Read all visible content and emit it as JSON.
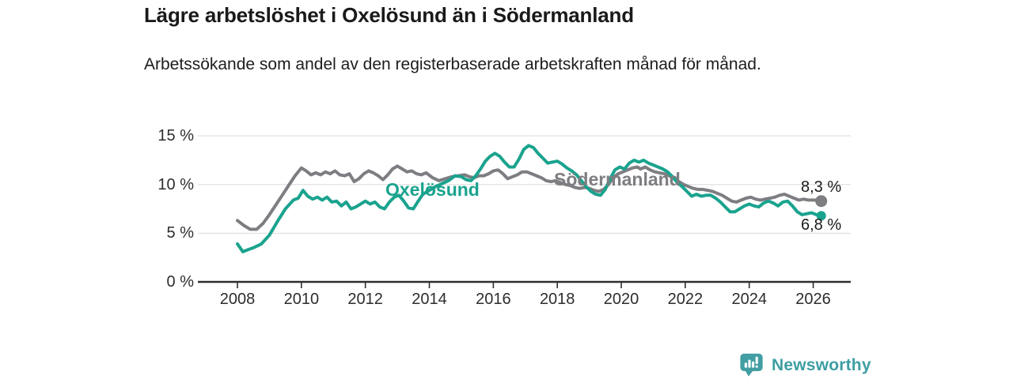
{
  "chart_data": {
    "type": "line",
    "title": "Lägre arbetslöshet i Oxelösund än i Södermanland",
    "subtitle": "Arbetssökande som andel av den registerbaserade arbetskraften månad för månad.",
    "unit": "%",
    "grid": true,
    "legend_position": "inline-labels",
    "x_axis": {
      "tick_years": [
        2008,
        2010,
        2012,
        2014,
        2016,
        2018,
        2020,
        2022,
        2024,
        2026
      ],
      "tick_labels": [
        "2008",
        "2010",
        "2012",
        "2014",
        "2016",
        "2018",
        "2020",
        "2022",
        "2024",
        "2026"
      ],
      "range": [
        2008,
        2026.25
      ]
    },
    "y_axis": {
      "tick_values": [
        15,
        10,
        5,
        0
      ],
      "tick_labels": [
        "15 %",
        "10 %",
        "5 %",
        "0 %"
      ],
      "range": [
        0,
        15
      ]
    },
    "series": [
      {
        "name": "Oxelösund",
        "color": "#1aa38e",
        "end_label": "6,8 %",
        "end_value": 6.8,
        "points": [
          [
            2008.0,
            3.9
          ],
          [
            2008.17,
            3.1
          ],
          [
            2008.33,
            3.3
          ],
          [
            2008.5,
            3.5
          ],
          [
            2008.75,
            3.9
          ],
          [
            2009.0,
            4.8
          ],
          [
            2009.25,
            6.2
          ],
          [
            2009.5,
            7.5
          ],
          [
            2009.75,
            8.4
          ],
          [
            2009.9,
            8.6
          ],
          [
            2010.05,
            9.4
          ],
          [
            2010.2,
            8.8
          ],
          [
            2010.35,
            8.5
          ],
          [
            2010.5,
            8.7
          ],
          [
            2010.65,
            8.4
          ],
          [
            2010.8,
            8.7
          ],
          [
            2010.95,
            8.2
          ],
          [
            2011.1,
            8.3
          ],
          [
            2011.25,
            7.8
          ],
          [
            2011.4,
            8.2
          ],
          [
            2011.55,
            7.5
          ],
          [
            2011.7,
            7.7
          ],
          [
            2011.85,
            8.0
          ],
          [
            2012.0,
            8.3
          ],
          [
            2012.15,
            8.0
          ],
          [
            2012.3,
            8.2
          ],
          [
            2012.45,
            7.7
          ],
          [
            2012.6,
            7.5
          ],
          [
            2012.75,
            8.2
          ],
          [
            2012.9,
            8.7
          ],
          [
            2013.05,
            8.9
          ],
          [
            2013.2,
            8.3
          ],
          [
            2013.35,
            7.6
          ],
          [
            2013.5,
            7.5
          ],
          [
            2013.65,
            8.3
          ],
          [
            2013.8,
            9.0
          ],
          [
            2014.0,
            9.4
          ],
          [
            2014.2,
            9.8
          ],
          [
            2014.4,
            10.1
          ],
          [
            2014.6,
            10.4
          ],
          [
            2014.8,
            10.9
          ],
          [
            2015.0,
            10.8
          ],
          [
            2015.15,
            10.5
          ],
          [
            2015.3,
            10.4
          ],
          [
            2015.45,
            10.9
          ],
          [
            2015.6,
            11.6
          ],
          [
            2015.75,
            12.4
          ],
          [
            2015.9,
            12.9
          ],
          [
            2016.05,
            13.2
          ],
          [
            2016.2,
            12.9
          ],
          [
            2016.35,
            12.3
          ],
          [
            2016.5,
            11.8
          ],
          [
            2016.65,
            11.8
          ],
          [
            2016.8,
            12.6
          ],
          [
            2016.95,
            13.6
          ],
          [
            2017.1,
            14.0
          ],
          [
            2017.25,
            13.8
          ],
          [
            2017.4,
            13.2
          ],
          [
            2017.55,
            12.7
          ],
          [
            2017.7,
            12.2
          ],
          [
            2017.85,
            12.3
          ],
          [
            2018.0,
            12.4
          ],
          [
            2018.15,
            12.1
          ],
          [
            2018.3,
            11.7
          ],
          [
            2018.45,
            11.4
          ],
          [
            2018.6,
            11.0
          ],
          [
            2018.75,
            10.4
          ],
          [
            2018.9,
            9.8
          ],
          [
            2019.05,
            9.3
          ],
          [
            2019.2,
            9.0
          ],
          [
            2019.35,
            8.9
          ],
          [
            2019.5,
            9.5
          ],
          [
            2019.65,
            10.6
          ],
          [
            2019.8,
            11.5
          ],
          [
            2019.95,
            11.8
          ],
          [
            2020.1,
            11.6
          ],
          [
            2020.25,
            12.2
          ],
          [
            2020.4,
            12.5
          ],
          [
            2020.55,
            12.3
          ],
          [
            2020.7,
            12.5
          ],
          [
            2020.85,
            12.2
          ],
          [
            2021.0,
            12.0
          ],
          [
            2021.15,
            11.8
          ],
          [
            2021.3,
            11.6
          ],
          [
            2021.45,
            11.3
          ],
          [
            2021.6,
            10.8
          ],
          [
            2021.75,
            10.2
          ],
          [
            2021.9,
            9.8
          ],
          [
            2022.05,
            9.3
          ],
          [
            2022.2,
            8.8
          ],
          [
            2022.35,
            9.0
          ],
          [
            2022.5,
            8.8
          ],
          [
            2022.65,
            8.9
          ],
          [
            2022.8,
            8.9
          ],
          [
            2022.95,
            8.6
          ],
          [
            2023.1,
            8.2
          ],
          [
            2023.25,
            7.7
          ],
          [
            2023.4,
            7.2
          ],
          [
            2023.55,
            7.2
          ],
          [
            2023.7,
            7.5
          ],
          [
            2023.85,
            7.8
          ],
          [
            2024.0,
            8.0
          ],
          [
            2024.15,
            7.8
          ],
          [
            2024.3,
            7.7
          ],
          [
            2024.45,
            8.1
          ],
          [
            2024.6,
            8.3
          ],
          [
            2024.75,
            8.1
          ],
          [
            2024.9,
            7.8
          ],
          [
            2025.05,
            8.2
          ],
          [
            2025.2,
            8.3
          ],
          [
            2025.35,
            7.8
          ],
          [
            2025.5,
            7.2
          ],
          [
            2025.65,
            6.9
          ],
          [
            2025.8,
            7.0
          ],
          [
            2025.95,
            7.1
          ],
          [
            2026.1,
            6.9
          ],
          [
            2026.25,
            6.8
          ]
        ]
      },
      {
        "name": "Södermanland",
        "color": "#7d7d82",
        "end_label": "8,3 %",
        "end_value": 8.3,
        "points": [
          [
            2008.0,
            6.3
          ],
          [
            2008.2,
            5.8
          ],
          [
            2008.4,
            5.4
          ],
          [
            2008.6,
            5.4
          ],
          [
            2008.8,
            6.0
          ],
          [
            2009.0,
            6.9
          ],
          [
            2009.2,
            7.9
          ],
          [
            2009.4,
            8.9
          ],
          [
            2009.6,
            9.9
          ],
          [
            2009.8,
            10.9
          ],
          [
            2010.0,
            11.7
          ],
          [
            2010.15,
            11.4
          ],
          [
            2010.3,
            11.0
          ],
          [
            2010.45,
            11.2
          ],
          [
            2010.6,
            11.0
          ],
          [
            2010.75,
            11.3
          ],
          [
            2010.9,
            11.1
          ],
          [
            2011.05,
            11.4
          ],
          [
            2011.2,
            11.0
          ],
          [
            2011.35,
            10.9
          ],
          [
            2011.5,
            11.1
          ],
          [
            2011.65,
            10.3
          ],
          [
            2011.8,
            10.6
          ],
          [
            2011.95,
            11.1
          ],
          [
            2012.1,
            11.4
          ],
          [
            2012.25,
            11.2
          ],
          [
            2012.4,
            10.9
          ],
          [
            2012.55,
            10.5
          ],
          [
            2012.7,
            11.0
          ],
          [
            2012.85,
            11.6
          ],
          [
            2013.0,
            11.9
          ],
          [
            2013.15,
            11.6
          ],
          [
            2013.3,
            11.3
          ],
          [
            2013.45,
            11.4
          ],
          [
            2013.6,
            11.1
          ],
          [
            2013.75,
            11.0
          ],
          [
            2013.9,
            11.2
          ],
          [
            2014.1,
            10.7
          ],
          [
            2014.3,
            10.4
          ],
          [
            2014.5,
            10.6
          ],
          [
            2014.7,
            10.8
          ],
          [
            2014.9,
            10.9
          ],
          [
            2015.1,
            11.0
          ],
          [
            2015.25,
            10.8
          ],
          [
            2015.4,
            10.7
          ],
          [
            2015.55,
            10.9
          ],
          [
            2015.7,
            10.9
          ],
          [
            2015.85,
            11.1
          ],
          [
            2016.0,
            11.4
          ],
          [
            2016.15,
            11.5
          ],
          [
            2016.3,
            11.1
          ],
          [
            2016.45,
            10.6
          ],
          [
            2016.6,
            10.8
          ],
          [
            2016.75,
            11.0
          ],
          [
            2016.9,
            11.3
          ],
          [
            2017.05,
            11.3
          ],
          [
            2017.2,
            11.1
          ],
          [
            2017.35,
            10.9
          ],
          [
            2017.5,
            10.7
          ],
          [
            2017.65,
            10.4
          ],
          [
            2017.8,
            10.3
          ],
          [
            2017.95,
            10.4
          ],
          [
            2018.1,
            10.2
          ],
          [
            2018.25,
            10.0
          ],
          [
            2018.4,
            9.9
          ],
          [
            2018.55,
            9.7
          ],
          [
            2018.7,
            9.6
          ],
          [
            2018.85,
            9.7
          ],
          [
            2019.0,
            9.6
          ],
          [
            2019.15,
            9.4
          ],
          [
            2019.3,
            9.3
          ],
          [
            2019.45,
            9.5
          ],
          [
            2019.6,
            10.0
          ],
          [
            2019.75,
            10.7
          ],
          [
            2019.9,
            11.1
          ],
          [
            2020.05,
            11.3
          ],
          [
            2020.2,
            11.5
          ],
          [
            2020.35,
            11.7
          ],
          [
            2020.5,
            11.8
          ],
          [
            2020.6,
            11.6
          ],
          [
            2020.75,
            11.8
          ],
          [
            2020.9,
            11.5
          ],
          [
            2021.05,
            11.3
          ],
          [
            2021.2,
            11.2
          ],
          [
            2021.35,
            11.1
          ],
          [
            2021.5,
            10.9
          ],
          [
            2021.65,
            10.6
          ],
          [
            2021.8,
            10.3
          ],
          [
            2021.95,
            10.0
          ],
          [
            2022.1,
            9.8
          ],
          [
            2022.25,
            9.6
          ],
          [
            2022.4,
            9.5
          ],
          [
            2022.55,
            9.5
          ],
          [
            2022.7,
            9.4
          ],
          [
            2022.85,
            9.3
          ],
          [
            2023.0,
            9.1
          ],
          [
            2023.15,
            8.9
          ],
          [
            2023.3,
            8.6
          ],
          [
            2023.45,
            8.3
          ],
          [
            2023.6,
            8.2
          ],
          [
            2023.75,
            8.4
          ],
          [
            2023.9,
            8.6
          ],
          [
            2024.05,
            8.7
          ],
          [
            2024.2,
            8.5
          ],
          [
            2024.35,
            8.4
          ],
          [
            2024.5,
            8.5
          ],
          [
            2024.65,
            8.6
          ],
          [
            2024.8,
            8.7
          ],
          [
            2024.95,
            8.9
          ],
          [
            2025.1,
            9.0
          ],
          [
            2025.25,
            8.8
          ],
          [
            2025.4,
            8.6
          ],
          [
            2025.55,
            8.4
          ],
          [
            2025.7,
            8.5
          ],
          [
            2025.85,
            8.4
          ],
          [
            2026.0,
            8.4
          ],
          [
            2026.1,
            8.4
          ],
          [
            2026.25,
            8.3
          ]
        ]
      }
    ]
  },
  "footer": {
    "brand": "Newsworthy"
  }
}
